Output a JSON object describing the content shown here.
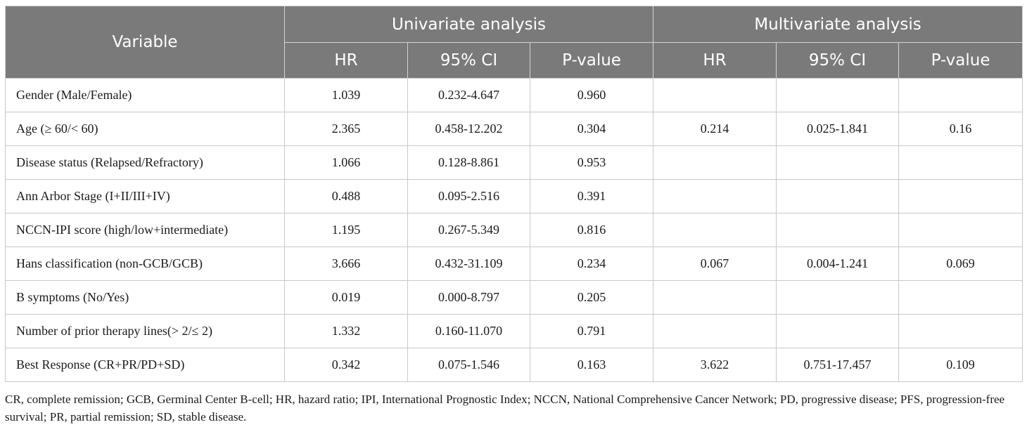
{
  "table": {
    "header": {
      "variable": "Variable",
      "univariate": "Univariate analysis",
      "multivariate": "Multivariate analysis",
      "sub": [
        "HR",
        "95% CI",
        "P-value",
        "HR",
        "95% CI",
        "P-value"
      ]
    },
    "rows": [
      {
        "variable": "Gender (Male/Female)",
        "u_hr": "1.039",
        "u_ci": "0.232-4.647",
        "u_p": "0.960",
        "m_hr": "",
        "m_ci": "",
        "m_p": ""
      },
      {
        "variable": "Age (≥ 60/< 60)",
        "u_hr": "2.365",
        "u_ci": "0.458-12.202",
        "u_p": "0.304",
        "m_hr": "0.214",
        "m_ci": "0.025-1.841",
        "m_p": "0.16"
      },
      {
        "variable": "Disease status (Relapsed/Refractory)",
        "u_hr": "1.066",
        "u_ci": "0.128-8.861",
        "u_p": "0.953",
        "m_hr": "",
        "m_ci": "",
        "m_p": ""
      },
      {
        "variable": "Ann Arbor Stage (I+II/III+IV)",
        "u_hr": "0.488",
        "u_ci": "0.095-2.516",
        "u_p": "0.391",
        "m_hr": "",
        "m_ci": "",
        "m_p": ""
      },
      {
        "variable": "NCCN-IPI score (high/low+intermediate)",
        "u_hr": "1.195",
        "u_ci": "0.267-5.349",
        "u_p": "0.816",
        "m_hr": "",
        "m_ci": "",
        "m_p": ""
      },
      {
        "variable": "Hans classification (non-GCB/GCB)",
        "u_hr": "3.666",
        "u_ci": "0.432-31.109",
        "u_p": "0.234",
        "m_hr": "0.067",
        "m_ci": "0.004-1.241",
        "m_p": "0.069"
      },
      {
        "variable": "B symptoms (No/Yes)",
        "u_hr": "0.019",
        "u_ci": "0.000-8.797",
        "u_p": "0.205",
        "m_hr": "",
        "m_ci": "",
        "m_p": ""
      },
      {
        "variable": "Number of prior therapy lines(> 2/≤ 2)",
        "u_hr": "1.332",
        "u_ci": "0.160-11.070",
        "u_p": "0.791",
        "m_hr": "",
        "m_ci": "",
        "m_p": ""
      },
      {
        "variable": "Best Response (CR+PR/PD+SD)",
        "u_hr": "0.342",
        "u_ci": "0.075-1.546",
        "u_p": "0.163",
        "m_hr": "3.622",
        "m_ci": "0.751-17.457",
        "m_p": "0.109"
      }
    ]
  },
  "footnote": "CR, complete remission; GCB, Germinal Center B-cell; HR, hazard ratio; IPI, International Prognostic Index; NCCN, National Comprehensive Cancer Network; PD, progressive disease; PFS, progression-free survival; PR, partial remission; SD, stable disease.",
  "colors": {
    "header_bg": "#7a7a7a",
    "header_text": "#ffffff",
    "border": "#c8c8c8"
  }
}
